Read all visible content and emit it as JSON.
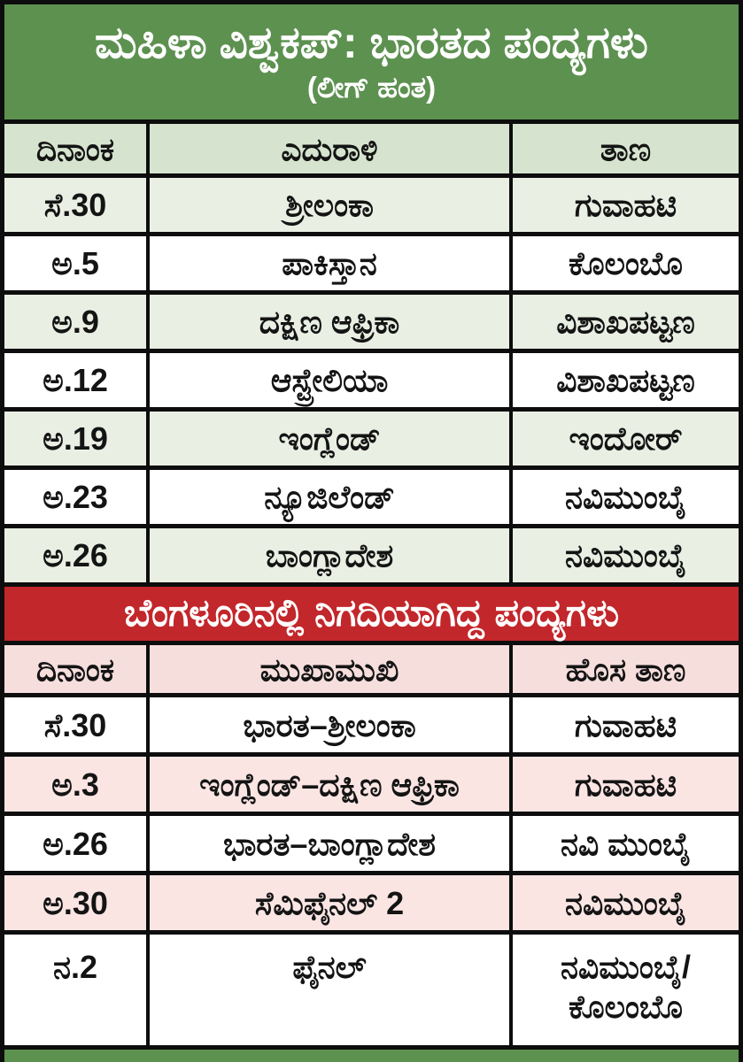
{
  "masthead": {
    "title": "ಮಹಿಳಾ ವಿಶ್ವಕಪ್: ಭಾರತದ ಪಂದ್ಯಗಳು",
    "subtitle": "(ಲೀಗ್ ಹಂತ)"
  },
  "league": {
    "columns": {
      "date": "ದಿನಾಂಕ",
      "opponent": "ಎದುರಾಳಿ",
      "venue": "ತಾಣ"
    },
    "rows": [
      {
        "date": "ಸೆ.30",
        "opponent": "ಶ್ರೀಲಂಕಾ",
        "venue": "ಗುವಾಹಟಿ"
      },
      {
        "date": "ಅ.5",
        "opponent": "ಪಾಕಿಸ್ತಾನ",
        "venue": "ಕೊಲಂಬೊ"
      },
      {
        "date": "ಅ.9",
        "opponent": "ದಕ್ಷಿಣ ಆಫ್ರಿಕಾ",
        "venue": "ವಿಶಾಖಪಟ್ಟಣ"
      },
      {
        "date": "ಅ.12",
        "opponent": "ಆಸ್ಟ್ರೇಲಿಯಾ",
        "venue": "ವಿಶಾಖಪಟ್ಟಣ"
      },
      {
        "date": "ಅ.19",
        "opponent": "ಇಂಗ್ಲೆಂಡ್",
        "venue": "ಇಂದೋರ್"
      },
      {
        "date": "ಅ.23",
        "opponent": "ನ್ಯೂಜಿಲೆಂಡ್",
        "venue": "ನವಿಮುಂಬೈ"
      },
      {
        "date": "ಅ.26",
        "opponent": "ಬಾಂಗ್ಲಾದೇಶ",
        "venue": "ನವಿಮುಂಬೈ"
      }
    ]
  },
  "bengaluru": {
    "banner": "ಬೆಂಗಳೂರಿನಲ್ಲಿ ನಿಗದಿಯಾಗಿದ್ದ ಪಂದ್ಯಗಳು",
    "columns": {
      "date": "ದಿನಾಂಕ",
      "match": "ಮುಖಾಮುಖಿ",
      "venue": "ಹೊಸ ತಾಣ"
    },
    "rows": [
      {
        "date": "ಸೆ.30",
        "match": "ಭಾರತ–ಶ್ರೀಲಂಕಾ",
        "venue": "ಗುವಾಹಟಿ"
      },
      {
        "date": "ಅ.3",
        "match": "ಇಂಗ್ಲೆಂಡ್–ದಕ್ಷಿಣ ಆಫ್ರಿಕಾ",
        "venue": "ಗುವಾಹಟಿ"
      },
      {
        "date": "ಅ.26",
        "match": "ಭಾರತ–ಬಾಂಗ್ಲಾದೇಶ",
        "venue": "ನವಿ ಮುಂಬೈ"
      },
      {
        "date": "ಅ.30",
        "match": "ಸೆಮಿಫೈನಲ್ 2",
        "venue": "ನವಿಮುಂಬೈ"
      },
      {
        "date": "ನ.2",
        "match": "ಫೈನಲ್",
        "venue": "ನವಿಮುಂಬೈ/\nಕೊಲಂಬೊ"
      }
    ]
  },
  "colors": {
    "green_band": "#5d9150",
    "red_band": "#c2272b",
    "league_zebra": "#e9efe3",
    "bengaluru_zebra": "#fae5e3",
    "border": "#0d0d0d"
  }
}
